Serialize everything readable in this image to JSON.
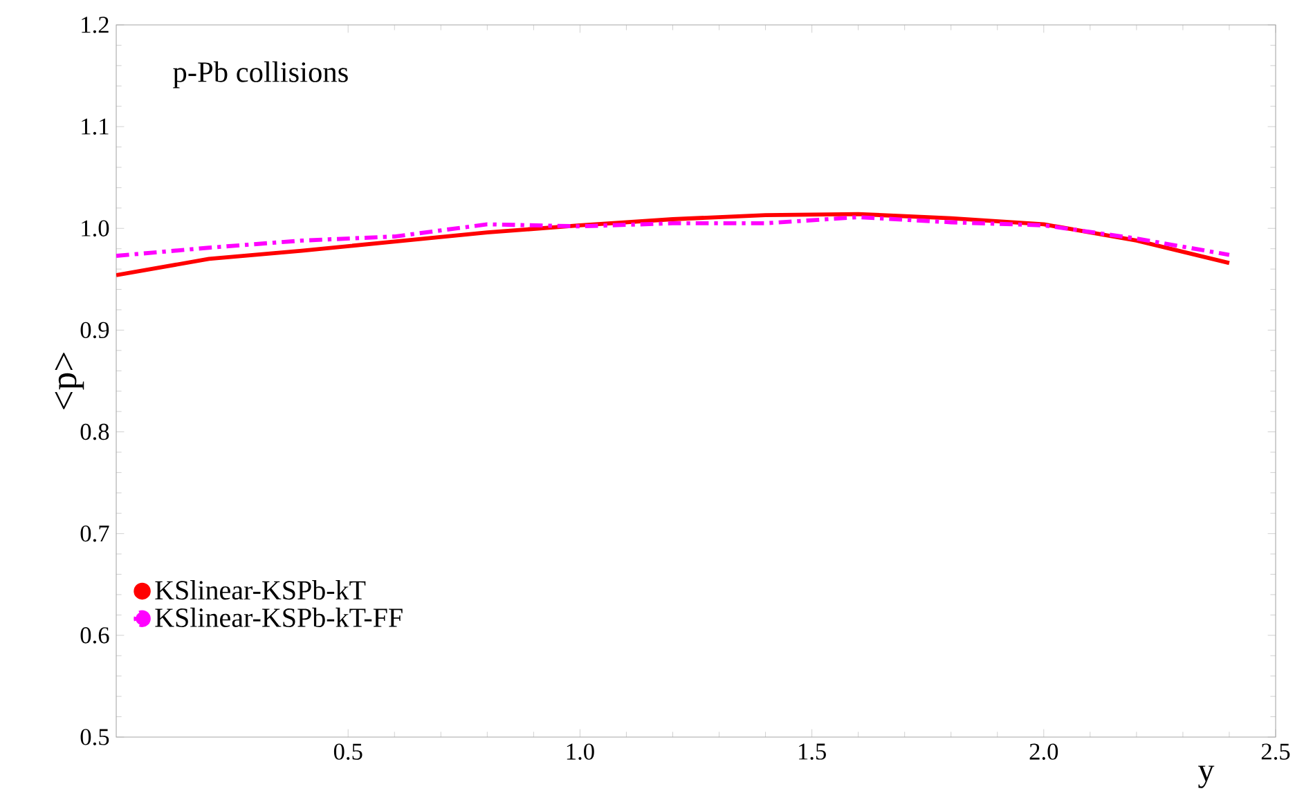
{
  "chart_data": {
    "type": "line",
    "xlabel": "y",
    "ylabel": "<p>",
    "annotations": [
      "p-Pb collisions"
    ],
    "x": [
      0,
      0.2,
      0.4,
      0.6,
      0.8,
      1.0,
      1.2,
      1.4,
      1.6,
      1.8,
      2.0,
      2.2,
      2.4
    ],
    "series": [
      {
        "name": "KSlinear-KSPb-kT",
        "color": "#ff0000",
        "line_style": "solid",
        "values": [
          0.954,
          0.97,
          0.978,
          0.987,
          0.996,
          1.003,
          1.009,
          1.013,
          1.014,
          1.01,
          1.004,
          0.988,
          0.966
        ]
      },
      {
        "name": "KSlinear-KSPb-kT-FF",
        "color": "#ff00ff",
        "line_style": "dashdot",
        "values": [
          0.973,
          0.981,
          0.988,
          0.992,
          1.004,
          1.002,
          1.005,
          1.005,
          1.011,
          1.006,
          1.003,
          0.99,
          0.974
        ]
      }
    ],
    "xlim": [
      0,
      2.5
    ],
    "ylim": [
      0.5,
      1.2
    ],
    "xticks": [
      {
        "value": 0.5,
        "label": "0.5"
      },
      {
        "value": 1.0,
        "label": "1.0"
      },
      {
        "value": 1.5,
        "label": "1.5"
      },
      {
        "value": 2.0,
        "label": "2.0"
      },
      {
        "value": 2.5,
        "label": "2.5"
      }
    ],
    "yticks": [
      {
        "value": 0.5,
        "label": "0.5"
      },
      {
        "value": 0.6,
        "label": "0.6"
      },
      {
        "value": 0.7,
        "label": "0.7"
      },
      {
        "value": 0.8,
        "label": "0.8"
      },
      {
        "value": 0.9,
        "label": "0.9"
      },
      {
        "value": 1.0,
        "label": "1.0"
      },
      {
        "value": 1.1,
        "label": "1.1"
      },
      {
        "value": 1.2,
        "label": "1.2"
      }
    ],
    "grid": false,
    "legend": "bottom left",
    "marker": "none"
  }
}
